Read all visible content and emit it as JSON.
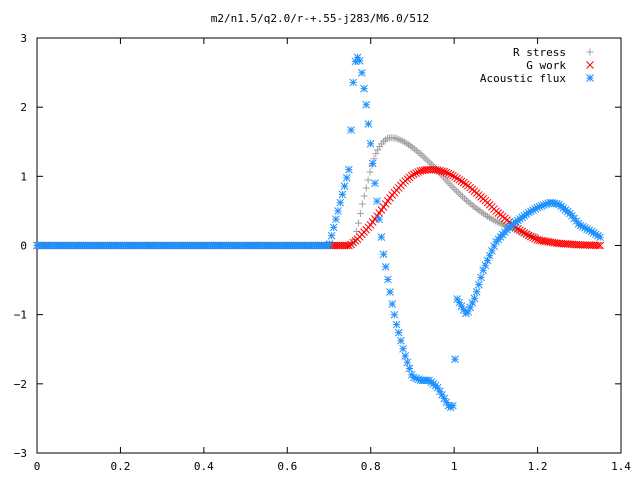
{
  "chart_data": {
    "type": "scatter",
    "title": "m2/n1.5/q2.0/r-+.55-j283/M6.0/512",
    "xlabel": "",
    "ylabel": "",
    "xlim": [
      0,
      1.4
    ],
    "ylim": [
      -3,
      3
    ],
    "x_ticks": [
      "0",
      "0.2",
      "0.4",
      "0.6",
      "0.8",
      "1",
      "1.2",
      "1.4"
    ],
    "y_ticks": [
      "3",
      "2",
      "1",
      "0",
      "−1",
      "−2",
      "−3"
    ],
    "grid": false,
    "legend_position": "top-right",
    "series": [
      {
        "name": "R stress",
        "marker": "+",
        "color": "#a0a0a0",
        "x": [
          0.0,
          0.1,
          0.2,
          0.3,
          0.4,
          0.5,
          0.6,
          0.7,
          0.75,
          0.76,
          0.77,
          0.78,
          0.79,
          0.8,
          0.81,
          0.82,
          0.83,
          0.84,
          0.85,
          0.86,
          0.87,
          0.88,
          0.9,
          0.92,
          0.95,
          0.98,
          1.0,
          1.03,
          1.05,
          1.08,
          1.1,
          1.13,
          1.15,
          1.18,
          1.2
        ],
        "y": [
          0,
          0,
          0,
          0,
          0,
          0,
          0,
          0,
          0,
          0.05,
          0.3,
          0.6,
          0.85,
          1.1,
          1.3,
          1.42,
          1.5,
          1.55,
          1.56,
          1.55,
          1.53,
          1.5,
          1.42,
          1.32,
          1.15,
          0.95,
          0.82,
          0.65,
          0.55,
          0.42,
          0.35,
          0.27,
          0.22,
          0.15,
          0.12
        ]
      },
      {
        "name": "G work",
        "marker": "x",
        "color": "#ff0000",
        "x": [
          0.0,
          0.1,
          0.2,
          0.3,
          0.4,
          0.5,
          0.6,
          0.7,
          0.75,
          0.77,
          0.8,
          0.83,
          0.85,
          0.88,
          0.9,
          0.92,
          0.94,
          0.96,
          0.98,
          1.0,
          1.03,
          1.05,
          1.08,
          1.1,
          1.13,
          1.15,
          1.18,
          1.2,
          1.25,
          1.3,
          1.35
        ],
        "y": [
          0,
          0,
          0,
          0,
          0,
          0,
          0,
          0,
          0,
          0.1,
          0.3,
          0.55,
          0.72,
          0.92,
          1.02,
          1.08,
          1.1,
          1.09,
          1.06,
          1.0,
          0.88,
          0.78,
          0.62,
          0.5,
          0.35,
          0.25,
          0.14,
          0.08,
          0.03,
          0.01,
          0.0
        ]
      },
      {
        "name": "Acoustic flux",
        "marker": "*",
        "color": "#1e90ff",
        "x": [
          0.0,
          0.1,
          0.2,
          0.3,
          0.4,
          0.5,
          0.6,
          0.7,
          0.75,
          0.755,
          0.76,
          0.765,
          0.77,
          0.775,
          0.78,
          0.79,
          0.8,
          0.81,
          0.82,
          0.83,
          0.84,
          0.85,
          0.86,
          0.88,
          0.9,
          0.92,
          0.94,
          0.96,
          0.98,
          0.99,
          1.0,
          1.005,
          1.01,
          1.02,
          1.03,
          1.05,
          1.07,
          1.1,
          1.13,
          1.15,
          1.18,
          1.2,
          1.23,
          1.25,
          1.28,
          1.3,
          1.33,
          1.35
        ],
        "y": [
          0,
          0,
          0,
          0,
          0,
          0,
          0,
          0,
          1.15,
          2.05,
          2.55,
          2.72,
          2.72,
          2.65,
          2.45,
          2.0,
          1.45,
          0.9,
          0.4,
          -0.1,
          -0.45,
          -0.8,
          -1.1,
          -1.55,
          -1.9,
          -1.95,
          -1.95,
          -2.05,
          -2.25,
          -2.35,
          -2.3,
          -0.75,
          -0.8,
          -0.9,
          -1.0,
          -0.75,
          -0.35,
          0.05,
          0.25,
          0.35,
          0.48,
          0.55,
          0.62,
          0.6,
          0.45,
          0.3,
          0.2,
          0.12
        ]
      }
    ]
  }
}
